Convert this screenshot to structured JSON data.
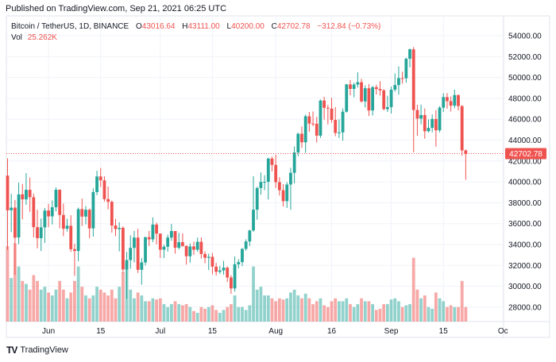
{
  "header": {
    "published": "Published on TradingView.com, Sep 21, 2021 06:25 UTC"
  },
  "legend": {
    "symbol": "Bitcoin / TetherUS, 1D, BINANCE",
    "open_label": "O",
    "open": "43016.64",
    "high_label": "H",
    "high": "43111.00",
    "low_label": "L",
    "low": "40200.00",
    "close_label": "C",
    "close": "42702.78",
    "change": "−312.84 (−0.73%)",
    "vol_label": "Vol",
    "vol": "25.262K"
  },
  "footer": {
    "logo_text": "TradingView"
  },
  "colors": {
    "up": "#26a69a",
    "down": "#ef5350",
    "grid": "#f0f3fa",
    "text": "#131722"
  },
  "chart_data": {
    "type": "candlestick",
    "last_price_label": "42702.78",
    "y_ticks": [
      "54000.00",
      "52000.00",
      "50000.00",
      "48000.00",
      "46000.00",
      "44000.00",
      "42000.00",
      "40000.00",
      "38000.00",
      "36000.00",
      "34000.00",
      "32000.00",
      "30000.00",
      "28000.00"
    ],
    "x_ticks": [
      {
        "label": "Jun",
        "date": "2021-06-01"
      },
      {
        "label": "15",
        "date": "2021-06-15"
      },
      {
        "label": "Jul",
        "date": "2021-07-01"
      },
      {
        "label": "15",
        "date": "2021-07-15"
      },
      {
        "label": "Aug",
        "date": "2021-08-01"
      },
      {
        "label": "16",
        "date": "2021-08-16"
      },
      {
        "label": "Sep",
        "date": "2021-09-01"
      },
      {
        "label": "15",
        "date": "2021-09-15"
      },
      {
        "label": "Oc",
        "date": "2021-10-01"
      }
    ],
    "start_date": "2021-05-21",
    "columns": [
      "open",
      "high",
      "low",
      "close",
      "volume_k"
    ],
    "candles": [
      [
        40596,
        42250,
        33488,
        37280,
        130
      ],
      [
        37280,
        38850,
        35200,
        37528,
        75
      ],
      [
        37531,
        38270,
        31111,
        34655,
        135
      ],
      [
        34681,
        39920,
        34031,
        38796,
        95
      ],
      [
        38810,
        39791,
        36419,
        38324,
        70
      ],
      [
        38324,
        40841,
        37800,
        39241,
        65
      ],
      [
        39241,
        40411,
        37134,
        38529,
        55
      ],
      [
        38529,
        38877,
        34684,
        35663,
        80
      ],
      [
        35662,
        37338,
        33633,
        34605,
        70
      ],
      [
        34606,
        36488,
        33379,
        35641,
        55
      ],
      [
        35642,
        37499,
        34153,
        37253,
        60
      ],
      [
        37254,
        37894,
        35666,
        36694,
        50
      ],
      [
        36694,
        38225,
        35920,
        37568,
        45
      ],
      [
        37568,
        39477,
        37170,
        39246,
        55
      ],
      [
        39246,
        39289,
        35555,
        36829,
        70
      ],
      [
        36829,
        37925,
        34800,
        35513,
        55
      ],
      [
        35516,
        36480,
        35245,
        35796,
        40
      ],
      [
        35796,
        36800,
        33300,
        33552,
        50
      ],
      [
        33556,
        34068,
        31000,
        33380,
        70
      ],
      [
        33380,
        37534,
        32396,
        37388,
        95
      ],
      [
        37389,
        38400,
        35782,
        36675,
        60
      ],
      [
        36675,
        37680,
        35936,
        37331,
        45
      ],
      [
        37332,
        37448,
        34600,
        35546,
        40
      ],
      [
        35547,
        39380,
        34757,
        39020,
        45
      ],
      [
        39020,
        41064,
        38730,
        40516,
        60
      ],
      [
        40516,
        41330,
        39506,
        40144,
        55
      ],
      [
        40143,
        40527,
        38116,
        38349,
        50
      ],
      [
        38349,
        39559,
        37365,
        38092,
        45
      ],
      [
        38093,
        38202,
        35129,
        35819,
        55
      ],
      [
        35820,
        36457,
        34803,
        35483,
        40
      ],
      [
        35484,
        36137,
        33336,
        35600,
        60
      ],
      [
        35601,
        35750,
        31251,
        31608,
        85
      ],
      [
        31614,
        33298,
        28805,
        32509,
        100
      ],
      [
        32510,
        34881,
        31683,
        33678,
        55
      ],
      [
        33676,
        35298,
        32286,
        34663,
        40
      ],
      [
        34663,
        35500,
        31275,
        31584,
        50
      ],
      [
        31577,
        32700,
        30151,
        32283,
        45
      ],
      [
        32283,
        34749,
        32000,
        34700,
        35
      ],
      [
        34702,
        35297,
        33862,
        34494,
        35
      ],
      [
        34494,
        36600,
        34225,
        35911,
        40
      ],
      [
        35911,
        36100,
        34017,
        35045,
        38
      ],
      [
        35045,
        35057,
        32711,
        33504,
        40
      ],
      [
        33502,
        33977,
        32699,
        33786,
        30
      ],
      [
        33786,
        34945,
        33316,
        34669,
        25
      ],
      [
        34669,
        35967,
        34357,
        35287,
        30
      ],
      [
        35288,
        35293,
        33125,
        33691,
        35
      ],
      [
        33690,
        35118,
        33532,
        34220,
        30
      ],
      [
        34220,
        35059,
        33777,
        33862,
        28
      ],
      [
        33863,
        33914,
        32077,
        32875,
        30
      ],
      [
        32875,
        34100,
        32261,
        33815,
        25
      ],
      [
        33815,
        34262,
        33004,
        33502,
        18
      ],
      [
        33502,
        34666,
        33306,
        34259,
        15
      ],
      [
        34259,
        34678,
        32658,
        33086,
        25
      ],
      [
        33086,
        33340,
        32202,
        32729,
        22
      ],
      [
        32729,
        33114,
        31550,
        32820,
        25
      ],
      [
        32820,
        33185,
        31133,
        31880,
        28
      ],
      [
        31874,
        32249,
        31020,
        31383,
        20
      ],
      [
        31384,
        31949,
        31179,
        31520,
        15
      ],
      [
        31520,
        32435,
        31108,
        31778,
        20
      ],
      [
        31779,
        31899,
        30407,
        30839,
        25
      ],
      [
        30839,
        31063,
        29278,
        29796,
        30
      ],
      [
        29796,
        32858,
        29482,
        32110,
        45
      ],
      [
        32110,
        32591,
        31708,
        32313,
        25
      ],
      [
        32314,
        33650,
        31924,
        33582,
        25
      ],
      [
        33581,
        34500,
        33401,
        34292,
        20
      ],
      [
        34292,
        35398,
        33851,
        35350,
        28
      ],
      [
        35350,
        40550,
        35205,
        37337,
        95
      ],
      [
        37338,
        39542,
        36384,
        39406,
        55
      ],
      [
        39406,
        40900,
        38772,
        39995,
        60
      ],
      [
        39995,
        40640,
        39200,
        40008,
        45
      ],
      [
        40008,
        42316,
        38313,
        42235,
        45
      ],
      [
        42235,
        42414,
        41000,
        41626,
        40
      ],
      [
        41626,
        42599,
        39422,
        39975,
        35
      ],
      [
        39975,
        40444,
        38690,
        39201,
        40
      ],
      [
        39201,
        39780,
        37642,
        38152,
        38
      ],
      [
        38152,
        39969,
        37508,
        39747,
        40
      ],
      [
        39747,
        41350,
        37332,
        40870,
        50
      ],
      [
        40870,
        43392,
        39853,
        42816,
        55
      ],
      [
        42816,
        44700,
        42450,
        44614,
        45
      ],
      [
        44614,
        45310,
        43261,
        43792,
        40
      ],
      [
        43792,
        46454,
        42779,
        46285,
        48
      ],
      [
        46280,
        46700,
        44800,
        45585,
        40
      ],
      [
        45585,
        46743,
        45341,
        45571,
        30
      ],
      [
        45570,
        46218,
        43770,
        44428,
        35
      ],
      [
        44428,
        47886,
        44217,
        47793,
        40
      ],
      [
        47793,
        48144,
        45971,
        47096,
        28
      ],
      [
        47096,
        47372,
        45500,
        47019,
        25
      ],
      [
        47019,
        48053,
        45660,
        45936,
        35
      ],
      [
        45936,
        47160,
        44376,
        44686,
        40
      ],
      [
        44686,
        46000,
        44203,
        44741,
        35
      ],
      [
        44741,
        47033,
        43950,
        46723,
        35
      ],
      [
        46723,
        49382,
        46634,
        49339,
        40
      ],
      [
        49339,
        49757,
        48285,
        48905,
        30
      ],
      [
        48905,
        49500,
        48102,
        49321,
        25
      ],
      [
        49322,
        50500,
        49030,
        49546,
        30
      ],
      [
        49546,
        49875,
        47600,
        47707,
        40
      ],
      [
        47706,
        49240,
        47134,
        48968,
        35
      ],
      [
        48968,
        49376,
        46315,
        46843,
        35
      ],
      [
        46843,
        49188,
        46365,
        49070,
        30
      ],
      [
        49070,
        49309,
        48370,
        48896,
        20
      ],
      [
        48896,
        49645,
        48261,
        48768,
        22
      ],
      [
        48768,
        48888,
        46853,
        46971,
        30
      ],
      [
        46971,
        48246,
        46700,
        47161,
        30
      ],
      [
        47161,
        49125,
        46550,
        48830,
        38
      ],
      [
        48830,
        50392,
        48630,
        49276,
        40
      ],
      [
        49276,
        51054,
        48349,
        49942,
        35
      ],
      [
        49942,
        50558,
        49412,
        49923,
        25
      ],
      [
        49923,
        51900,
        49500,
        51796,
        28
      ],
      [
        51796,
        52780,
        50969,
        52698,
        30
      ],
      [
        52698,
        52920,
        42843,
        46881,
        110
      ],
      [
        46881,
        47381,
        44412,
        46061,
        55
      ],
      [
        46061,
        47400,
        45514,
        46401,
        40
      ],
      [
        46401,
        47040,
        44132,
        44851,
        45
      ],
      [
        44851,
        45989,
        44730,
        45173,
        25
      ],
      [
        45173,
        46460,
        44742,
        46026,
        22
      ],
      [
        46026,
        46876,
        43370,
        44941,
        50
      ],
      [
        44941,
        47250,
        44750,
        47111,
        40
      ],
      [
        47111,
        48500,
        46700,
        48122,
        35
      ],
      [
        48122,
        48500,
        47020,
        47737,
        25
      ],
      [
        47737,
        48180,
        46750,
        47300,
        28
      ],
      [
        47300,
        48843,
        47050,
        48314,
        25
      ],
      [
        48314,
        48370,
        46850,
        47261,
        25
      ],
      [
        47261,
        47350,
        42500,
        43016,
        70
      ],
      [
        43016,
        43111,
        40200,
        42702,
        25
      ]
    ]
  }
}
